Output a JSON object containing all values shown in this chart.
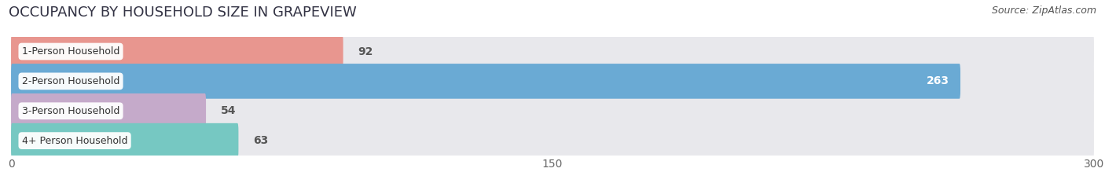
{
  "title": "OCCUPANCY BY HOUSEHOLD SIZE IN GRAPEVIEW",
  "source": "Source: ZipAtlas.com",
  "categories": [
    "1-Person Household",
    "2-Person Household",
    "3-Person Household",
    "4+ Person Household"
  ],
  "values": [
    92,
    263,
    54,
    63
  ],
  "bar_colors": [
    "#e8968f",
    "#6aaad4",
    "#c5aaca",
    "#76c8c2"
  ],
  "bar_bg_color": "#e8e8ec",
  "xlim": [
    0,
    300
  ],
  "xticks": [
    0,
    150,
    300
  ],
  "label_color_inside": "#ffffff",
  "label_color_outside": "#555555",
  "title_fontsize": 13,
  "source_fontsize": 9,
  "tick_fontsize": 10,
  "bar_label_fontsize": 10,
  "category_fontsize": 9,
  "background_color": "#ffffff",
  "bar_height": 0.62,
  "value_threshold_inside": 240
}
